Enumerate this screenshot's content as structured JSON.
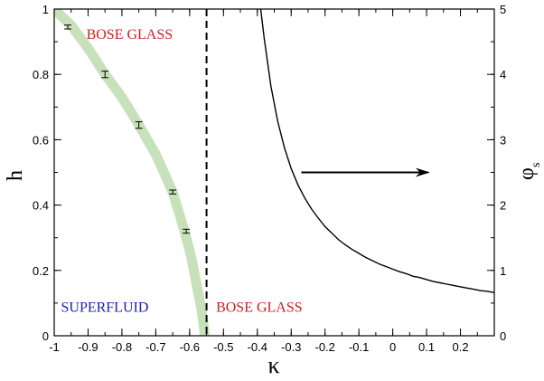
{
  "chart_data": {
    "type": "line",
    "xlabel": "κ",
    "ylabel_left": "h",
    "ylabel_right": "φ",
    "ylabel_right_subscript": "s",
    "xlim": [
      -1.0,
      0.3
    ],
    "ylim_left": [
      0,
      1
    ],
    "ylim_right": [
      0,
      5
    ],
    "grid": false,
    "x_ticks": [
      -1,
      -0.9,
      -0.8,
      -0.7,
      -0.6,
      -0.5,
      -0.4,
      -0.3,
      -0.2,
      -0.1,
      0,
      0.1,
      0.2
    ],
    "x_tick_labels": [
      "-1",
      "-0.9",
      "-0.8",
      "-0.7",
      "-0.6",
      "-0.5",
      "-0.4",
      "-0.3",
      "-0.2",
      "-0.1",
      "0",
      "0.1",
      "0.2"
    ],
    "y_left_ticks": [
      0,
      0.2,
      0.4,
      0.6,
      0.8,
      1
    ],
    "y_left_tick_labels": [
      "0",
      "0.2",
      "0.4",
      "0.6",
      "0.8",
      "1"
    ],
    "y_right_ticks": [
      0,
      1,
      2,
      3,
      4,
      5
    ],
    "y_right_tick_labels": [
      "0",
      "1",
      "2",
      "3",
      "4",
      "5"
    ],
    "phase_boundary_band": {
      "color": "#c7e2bb",
      "x": [
        -1.0,
        -0.95,
        -0.9,
        -0.85,
        -0.8,
        -0.75,
        -0.7,
        -0.65,
        -0.615,
        -0.595,
        -0.58,
        -0.565,
        -0.555
      ],
      "y": [
        1.0,
        0.95,
        0.88,
        0.8,
        0.73,
        0.645,
        0.555,
        0.44,
        0.32,
        0.24,
        0.16,
        0.08,
        0.0
      ]
    },
    "error_bars": {
      "x": [
        -0.96,
        -0.85,
        -0.75,
        -0.65,
        -0.61
      ],
      "y": [
        0.945,
        0.8,
        0.645,
        0.44,
        0.32
      ],
      "err": [
        0.006,
        0.01,
        0.01,
        0.006,
        0.006
      ]
    },
    "critical_line": {
      "x": -0.55,
      "style": "dashed"
    },
    "phi_s_curve": {
      "x": [
        -0.39,
        -0.38,
        -0.36,
        -0.34,
        -0.32,
        -0.3,
        -0.28,
        -0.26,
        -0.24,
        -0.22,
        -0.2,
        -0.18,
        -0.16,
        -0.14,
        -0.12,
        -0.1,
        -0.08,
        -0.06,
        -0.04,
        -0.02,
        0.0,
        0.02,
        0.04,
        0.06,
        0.08,
        0.1,
        0.12,
        0.14,
        0.16,
        0.18,
        0.2,
        0.22,
        0.24,
        0.26,
        0.28,
        0.3
      ],
      "y": [
        5.0,
        4.56,
        3.82,
        3.29,
        2.88,
        2.56,
        2.31,
        2.11,
        1.94,
        1.8,
        1.67,
        1.57,
        1.47,
        1.39,
        1.32,
        1.26,
        1.2,
        1.15,
        1.1,
        1.06,
        1.02,
        0.98,
        0.95,
        0.91,
        0.89,
        0.86,
        0.83,
        0.81,
        0.79,
        0.77,
        0.75,
        0.73,
        0.71,
        0.69,
        0.68,
        0.66
      ],
      "color": "#000000"
    },
    "arrow": {
      "x_start": -0.27,
      "x_end": 0.11,
      "y_right": 2.5
    },
    "annotations": [
      {
        "text": "BOSE GLASS",
        "x": -0.905,
        "y": 0.925,
        "color": "#cc1f1f"
      },
      {
        "text": "SUPERFLUID",
        "x": -0.98,
        "y": 0.09,
        "color": "#1f1fb0"
      },
      {
        "text": "BOSE GLASS",
        "x": -0.522,
        "y": 0.09,
        "color": "#cc1f1f"
      }
    ]
  }
}
